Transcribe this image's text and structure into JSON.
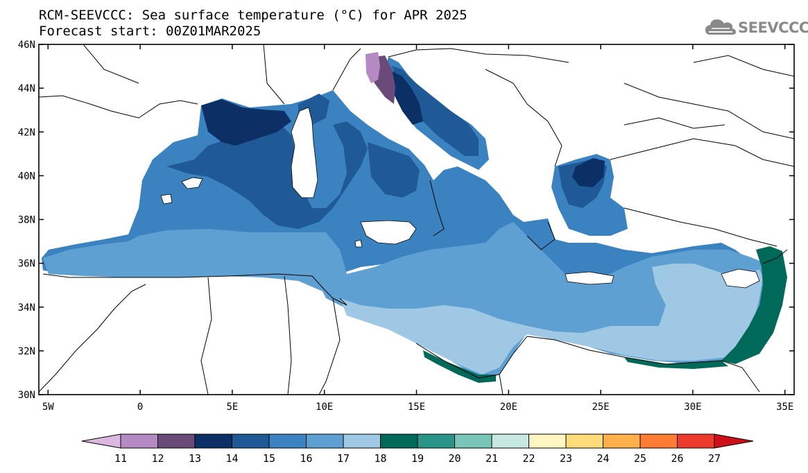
{
  "title": {
    "line1": "RCM-SEEVCCC: Sea surface temperature (°C) for APR 2025",
    "line2": "Forecast start: 00Z01MAR2025"
  },
  "logo": {
    "text": "SEEVCCC",
    "icon": "cloud-icon"
  },
  "map": {
    "lat_ticks": [
      "46N",
      "44N",
      "42N",
      "40N",
      "38N",
      "36N",
      "34N",
      "32N",
      "30N"
    ],
    "lon_ticks": [
      "5W",
      "0",
      "5E",
      "10E",
      "15E",
      "20E",
      "25E",
      "30E",
      "35E"
    ],
    "lon_range": [
      -5.5,
      35.5
    ],
    "lat_range": [
      30,
      46
    ]
  },
  "colorbar": {
    "labels": [
      "11",
      "12",
      "13",
      "14",
      "15",
      "16",
      "17",
      "18",
      "19",
      "20",
      "21",
      "22",
      "23",
      "24",
      "25",
      "26",
      "27"
    ],
    "colors": [
      "#dcb8e0",
      "#b58ac4",
      "#6a4a78",
      "#0c2f66",
      "#1f5a96",
      "#3b83c0",
      "#5fa0d2",
      "#9ec8e4",
      "#00695a",
      "#2b9488",
      "#78c6b8",
      "#c6e8e0",
      "#fff6c2",
      "#ffdc7a",
      "#ffb04a",
      "#ff7c34",
      "#ee3a2a",
      "#cc0f18"
    ]
  },
  "colors": {
    "land": "#ffffff",
    "sst_13": "#6a4a78",
    "sst_14": "#0c2f66",
    "sst_15": "#1f5a96",
    "sst_16": "#3b83c0",
    "sst_17": "#5fa0d2",
    "sst_18": "#9ec8e4",
    "sst_19": "#00695a",
    "sst_12": "#b58ac4"
  }
}
